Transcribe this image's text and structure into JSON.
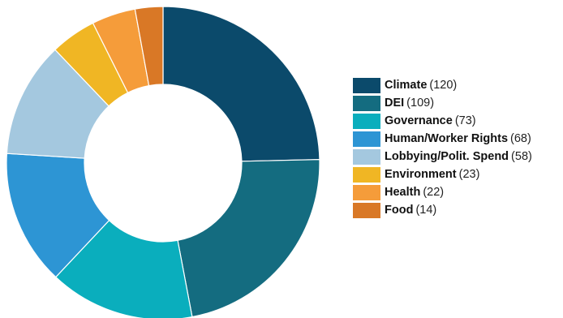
{
  "chart_data": {
    "type": "pie",
    "variant": "donut",
    "legend_position": "right",
    "categories": [
      "Climate",
      "DEI",
      "Governance",
      "Human/Worker Rights",
      "Lobbying/Polit. Spend",
      "Environment",
      "Health",
      "Food"
    ],
    "values": [
      120,
      109,
      73,
      68,
      58,
      23,
      22,
      14
    ],
    "value_labels": [
      "(120)",
      "(109)",
      "(73)",
      "(68)",
      "(58)",
      "(23)",
      "(22)",
      "(14)"
    ],
    "colors": [
      "#0b4a6b",
      "#146c80",
      "#0aaebd",
      "#2d95d4",
      "#a4c8df",
      "#f0b624",
      "#f59c3a",
      "#d97826"
    ]
  }
}
